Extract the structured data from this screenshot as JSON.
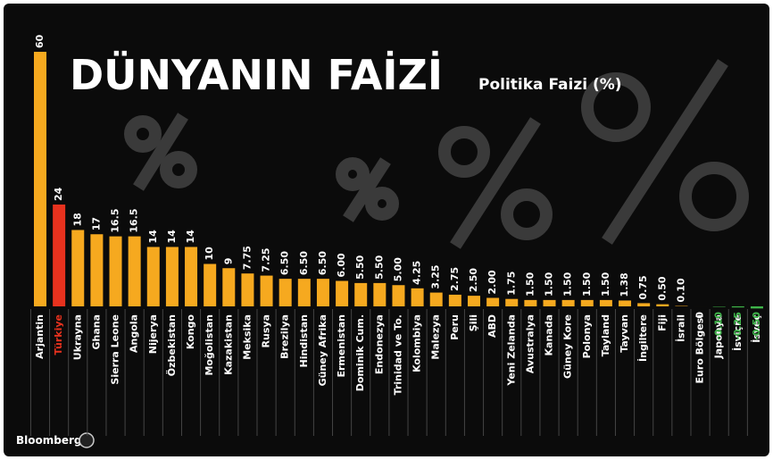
{
  "chart_data": {
    "type": "bar",
    "title": "DÜNYANIN FAİZİ",
    "subtitle": "Politika Faizi (%)",
    "source": "Bloomberg",
    "categories": [
      "Arjantin",
      "Türkiye",
      "Ukrayna",
      "Ghana",
      "Sierra Leone",
      "Angola",
      "Nijerya",
      "Özbekistan",
      "Kongo",
      "Moğolistan",
      "Kazakistan",
      "Meksika",
      "Rusya",
      "Brezilya",
      "Hindistan",
      "Güney Afrika",
      "Ermenistan",
      "Dominik Cum.",
      "Endonezya",
      "Trinidad ve To.",
      "Kolombiya",
      "Malezya",
      "Peru",
      "Şili",
      "ABD",
      "Yeni Zelanda",
      "Avustralya",
      "Kanada",
      "Güney Kore",
      "Polonya",
      "Tayland",
      "Tayvan",
      "İngiltere",
      "Fiji",
      "İsrail",
      "Euro Bölgesi",
      "Japonya",
      "İsviçre",
      "İsveç"
    ],
    "values": [
      60,
      24,
      18,
      17,
      16.5,
      16.5,
      14,
      14,
      14,
      10,
      9,
      7.75,
      7.25,
      6.5,
      6.5,
      6.5,
      6,
      5.5,
      5.5,
      5,
      4.25,
      3.25,
      2.75,
      2.5,
      2,
      1.75,
      1.5,
      1.5,
      1.5,
      1.5,
      1.5,
      1.38,
      0.75,
      0.5,
      0.1,
      0,
      -0.1,
      -0.25,
      -0.5
    ],
    "value_labels": [
      "60",
      "24",
      "18",
      "17",
      "16.5",
      "16.5",
      "14",
      "14",
      "14",
      "10",
      "9",
      "7.75",
      "7.25",
      "6.50",
      "6.50",
      "6.50",
      "6.00",
      "5.50",
      "5.50",
      "5.00",
      "4.25",
      "3.25",
      "2.75",
      "2.50",
      "2.00",
      "1.75",
      "1.50",
      "1.50",
      "1.50",
      "1.50",
      "1.50",
      "1.38",
      "0.75",
      "0.50",
      "0.10",
      "0",
      "-0.10",
      "-0.25",
      "-0.50"
    ],
    "colors": [
      "#f6a91f",
      "#e8321e",
      "#f6a91f",
      "#f6a91f",
      "#f6a91f",
      "#f6a91f",
      "#f6a91f",
      "#f6a91f",
      "#f6a91f",
      "#f6a91f",
      "#f6a91f",
      "#f6a91f",
      "#f6a91f",
      "#f6a91f",
      "#f6a91f",
      "#f6a91f",
      "#f6a91f",
      "#f6a91f",
      "#f6a91f",
      "#f6a91f",
      "#f6a91f",
      "#f6a91f",
      "#f6a91f",
      "#f6a91f",
      "#f6a91f",
      "#f6a91f",
      "#f6a91f",
      "#f6a91f",
      "#f6a91f",
      "#f6a91f",
      "#f6a91f",
      "#f6a91f",
      "#f6a91f",
      "#f6a91f",
      "#f6a91f",
      "#f6a91f",
      "#3fb54a",
      "#3fb54a",
      "#3fb54a"
    ],
    "value_label_colors": [
      "#ffffff",
      "#ffffff",
      "#ffffff",
      "#ffffff",
      "#ffffff",
      "#ffffff",
      "#ffffff",
      "#ffffff",
      "#ffffff",
      "#ffffff",
      "#ffffff",
      "#ffffff",
      "#ffffff",
      "#ffffff",
      "#ffffff",
      "#ffffff",
      "#ffffff",
      "#ffffff",
      "#ffffff",
      "#ffffff",
      "#ffffff",
      "#ffffff",
      "#ffffff",
      "#ffffff",
      "#ffffff",
      "#ffffff",
      "#ffffff",
      "#ffffff",
      "#ffffff",
      "#ffffff",
      "#ffffff",
      "#ffffff",
      "#ffffff",
      "#ffffff",
      "#ffffff",
      "#ffffff",
      "#3fb54a",
      "#3fb54a",
      "#3fb54a"
    ],
    "category_colors": [
      "#ffffff",
      "#e8321e",
      "#ffffff",
      "#ffffff",
      "#ffffff",
      "#ffffff",
      "#ffffff",
      "#ffffff",
      "#ffffff",
      "#ffffff",
      "#ffffff",
      "#ffffff",
      "#ffffff",
      "#ffffff",
      "#ffffff",
      "#ffffff",
      "#ffffff",
      "#ffffff",
      "#ffffff",
      "#ffffff",
      "#ffffff",
      "#ffffff",
      "#ffffff",
      "#ffffff",
      "#ffffff",
      "#ffffff",
      "#ffffff",
      "#ffffff",
      "#ffffff",
      "#ffffff",
      "#ffffff",
      "#ffffff",
      "#ffffff",
      "#ffffff",
      "#ffffff",
      "#ffffff",
      "#ffffff",
      "#ffffff",
      "#ffffff"
    ]
  }
}
